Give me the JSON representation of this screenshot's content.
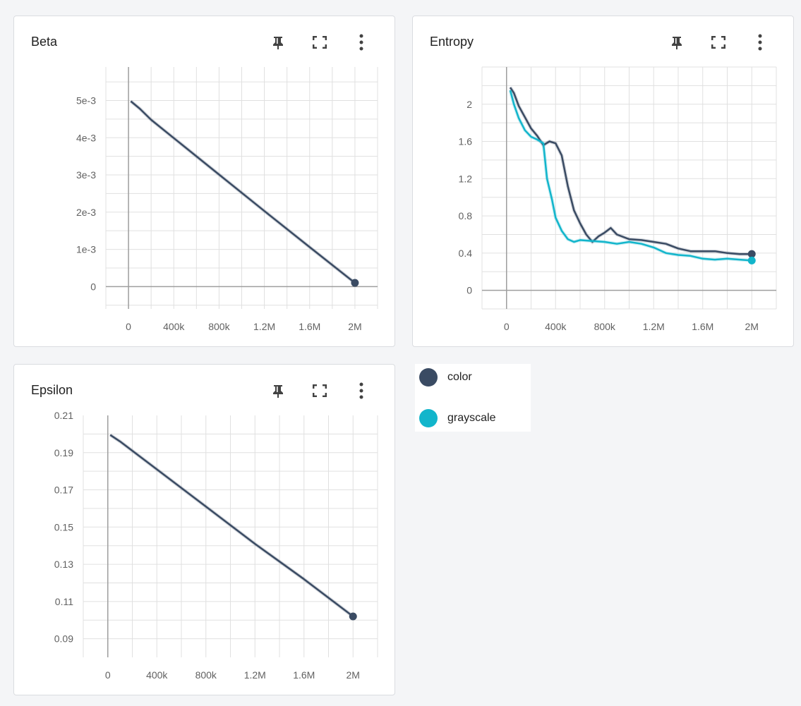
{
  "cards": [
    {
      "title": "Beta"
    },
    {
      "title": "Entropy"
    },
    {
      "title": "Epsilon"
    }
  ],
  "icons": {
    "pin": "pin-icon",
    "fullscreen": "fullscreen-icon",
    "more": "more-vert-icon"
  },
  "legend": [
    {
      "name": "color",
      "color": "#3a4b63"
    },
    {
      "name": "grayscale",
      "color": "#12b5cb"
    }
  ],
  "chart_data": [
    {
      "type": "line",
      "title": "Beta",
      "xlim": [
        -200000,
        2200000
      ],
      "ylim": [
        -0.0006,
        0.0059
      ],
      "x_ticks": [
        0,
        400000,
        800000,
        1200000,
        1600000,
        2000000
      ],
      "x_tick_labels": [
        "0",
        "400k",
        "800k",
        "1.2M",
        "1.6M",
        "2M"
      ],
      "y_ticks": [
        0,
        0.001,
        0.002,
        0.003,
        0.004,
        0.005
      ],
      "y_tick_labels": [
        "0",
        "1e-3",
        "2e-3",
        "3e-3",
        "4e-3",
        "5e-3"
      ],
      "grid": true,
      "series": [
        {
          "name": "color",
          "color": "#3a4b63",
          "x": [
            20000,
            100000,
            200000,
            400000,
            800000,
            1200000,
            1600000,
            2000000
          ],
          "y": [
            0.00498,
            0.00478,
            0.00448,
            0.00399,
            0.00301,
            0.00203,
            0.00106,
            0.0001
          ]
        }
      ]
    },
    {
      "type": "line",
      "title": "Entropy",
      "xlim": [
        -200000,
        2200000
      ],
      "ylim": [
        -0.2,
        2.4
      ],
      "x_ticks": [
        0,
        400000,
        800000,
        1200000,
        1600000,
        2000000
      ],
      "x_tick_labels": [
        "0",
        "400k",
        "800k",
        "1.2M",
        "1.6M",
        "2M"
      ],
      "y_ticks": [
        0,
        0.4,
        0.8,
        1.2,
        1.6,
        2
      ],
      "y_tick_labels": [
        "0",
        "0.4",
        "0.8",
        "1.2",
        "1.6",
        "2"
      ],
      "grid": true,
      "series": [
        {
          "name": "color",
          "color": "#3a4b63",
          "x": [
            30000,
            60000,
            100000,
            150000,
            200000,
            250000,
            300000,
            350000,
            400000,
            450000,
            500000,
            550000,
            600000,
            650000,
            700000,
            750000,
            800000,
            850000,
            900000,
            1000000,
            1100000,
            1200000,
            1300000,
            1400000,
            1500000,
            1600000,
            1700000,
            1800000,
            1900000,
            2000000
          ],
          "y": [
            2.18,
            2.12,
            1.98,
            1.86,
            1.74,
            1.66,
            1.56,
            1.6,
            1.58,
            1.45,
            1.12,
            0.86,
            0.72,
            0.6,
            0.52,
            0.58,
            0.62,
            0.67,
            0.6,
            0.55,
            0.54,
            0.52,
            0.5,
            0.45,
            0.42,
            0.42,
            0.42,
            0.4,
            0.39,
            0.39
          ]
        },
        {
          "name": "grayscale",
          "color": "#12b5cb",
          "x": [
            30000,
            60000,
            100000,
            150000,
            200000,
            250000,
            300000,
            330000,
            370000,
            400000,
            450000,
            500000,
            550000,
            600000,
            700000,
            800000,
            900000,
            1000000,
            1100000,
            1200000,
            1300000,
            1400000,
            1500000,
            1600000,
            1700000,
            1800000,
            1900000,
            2000000
          ],
          "y": [
            2.15,
            2.0,
            1.85,
            1.72,
            1.65,
            1.62,
            1.58,
            1.2,
            0.98,
            0.78,
            0.64,
            0.55,
            0.52,
            0.54,
            0.53,
            0.52,
            0.5,
            0.52,
            0.5,
            0.46,
            0.4,
            0.38,
            0.37,
            0.34,
            0.33,
            0.34,
            0.33,
            0.32
          ]
        }
      ]
    },
    {
      "type": "line",
      "title": "Epsilon",
      "xlim": [
        -200000,
        2200000
      ],
      "ylim": [
        0.08,
        0.21
      ],
      "x_ticks": [
        0,
        400000,
        800000,
        1200000,
        1600000,
        2000000
      ],
      "x_tick_labels": [
        "0",
        "400k",
        "800k",
        "1.2M",
        "1.6M",
        "2M"
      ],
      "y_ticks": [
        0.09,
        0.11,
        0.13,
        0.15,
        0.17,
        0.19,
        0.21
      ],
      "y_tick_labels": [
        "0.09",
        "0.11",
        "0.13",
        "0.15",
        "0.17",
        "0.19",
        "0.21"
      ],
      "grid": true,
      "series": [
        {
          "name": "color",
          "color": "#3a4b63",
          "x": [
            20000,
            100000,
            200000,
            400000,
            800000,
            1200000,
            1600000,
            2000000
          ],
          "y": [
            0.1995,
            0.196,
            0.191,
            0.181,
            0.161,
            0.141,
            0.122,
            0.102
          ]
        }
      ]
    }
  ]
}
